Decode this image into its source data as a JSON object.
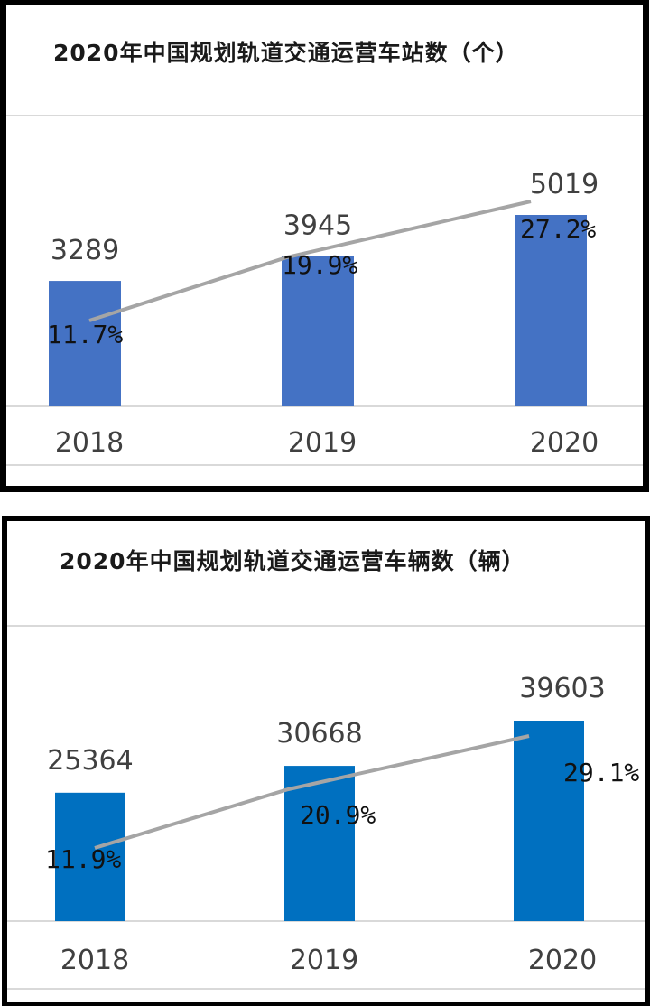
{
  "chart_data": [
    {
      "type": "bar",
      "title": "2020年中国规划轨道交通运营车站数（个）",
      "categories": [
        "2018",
        "2019",
        "2020"
      ],
      "values": [
        3289,
        3945,
        5019
      ],
      "value_labels": [
        "3289",
        "3945",
        "5019"
      ],
      "growth_rates": [
        11.7,
        19.9,
        27.2
      ],
      "growth_labels": [
        "11.7%",
        "19.9%",
        "27.2%"
      ],
      "bar_color": "#4472C4",
      "line_color": "#A5A5A5",
      "grid": true,
      "legend": "none"
    },
    {
      "type": "bar",
      "title": "2020年中国规划轨道交通运营车辆数（辆）",
      "categories": [
        "2018",
        "2019",
        "2020"
      ],
      "values": [
        25364,
        30668,
        39603
      ],
      "value_labels": [
        "25364",
        "30668",
        "39603"
      ],
      "growth_rates": [
        11.9,
        20.9,
        29.1
      ],
      "growth_labels": [
        "11.9%",
        "20.9%",
        "29.1%"
      ],
      "bar_color": "#0070C0",
      "line_color": "#A5A5A5",
      "grid": true,
      "legend": "none"
    }
  ]
}
